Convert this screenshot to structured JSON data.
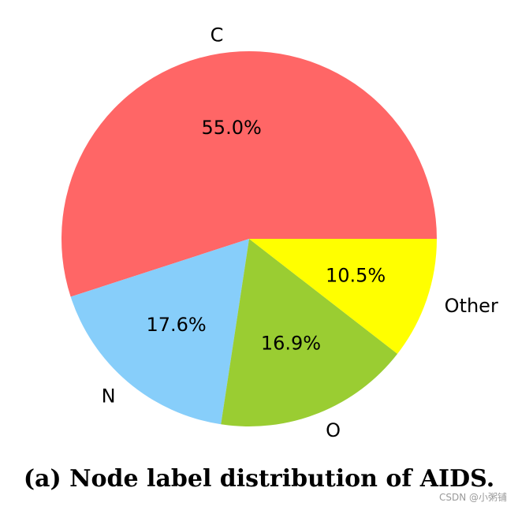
{
  "chart_data": {
    "type": "pie",
    "categories": [
      "C",
      "N",
      "O",
      "Other"
    ],
    "values": [
      55.0,
      17.6,
      16.9,
      10.5
    ],
    "value_labels": [
      "55.0%",
      "17.6%",
      "16.9%",
      "10.5%"
    ],
    "colors": [
      "#ff6666",
      "#87cefa",
      "#9acd32",
      "#ffff00"
    ],
    "start_angle_deg": 0,
    "direction": "counterclockwise",
    "legend": "none"
  },
  "caption": "(a) Node label distribution of AIDS.",
  "watermark": "CSDN @小粥铺"
}
